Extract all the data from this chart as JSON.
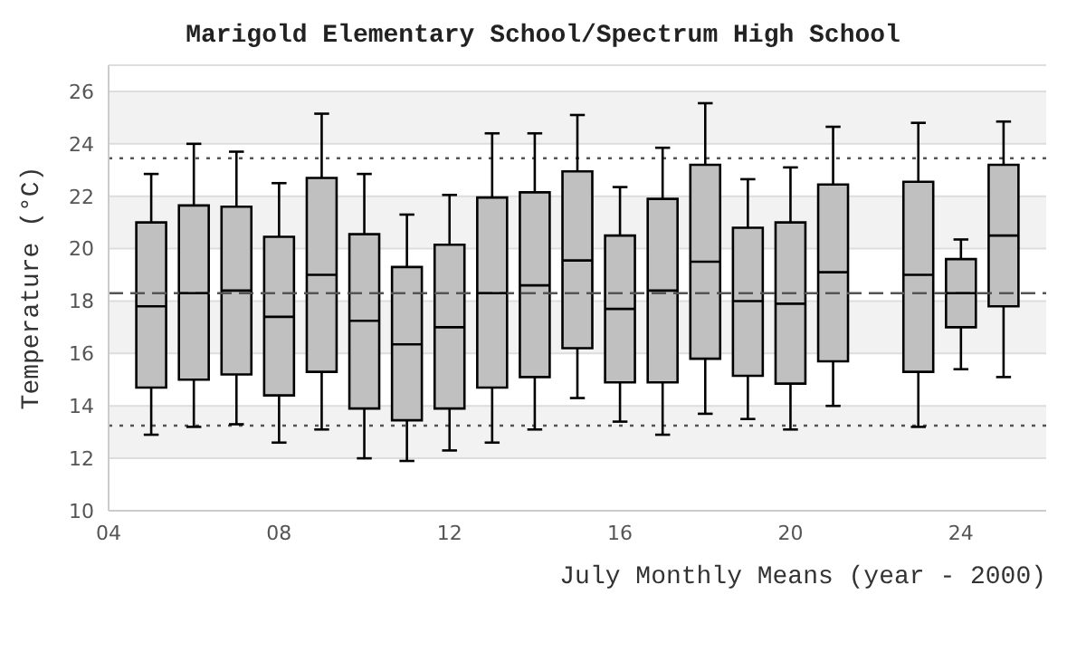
{
  "chart_data": {
    "type": "box",
    "title": "Marigold Elementary School/Spectrum High School",
    "xlabel": "July Monthly Means (year - 2000)",
    "ylabel": "Temperature (°C)",
    "x": [
      5,
      6,
      7,
      8,
      9,
      10,
      11,
      12,
      13,
      14,
      15,
      16,
      17,
      18,
      19,
      20,
      21,
      23,
      24,
      25
    ],
    "boxes": [
      {
        "low": 12.9,
        "q1": 14.7,
        "median": 17.8,
        "q3": 21.0,
        "high": 22.85
      },
      {
        "low": 13.2,
        "q1": 15.0,
        "median": 18.3,
        "q3": 21.65,
        "high": 24.0
      },
      {
        "low": 13.3,
        "q1": 15.2,
        "median": 18.4,
        "q3": 21.6,
        "high": 23.7
      },
      {
        "low": 12.6,
        "q1": 14.4,
        "median": 17.4,
        "q3": 20.45,
        "high": 22.5
      },
      {
        "low": 13.1,
        "q1": 15.3,
        "median": 19.0,
        "q3": 22.7,
        "high": 25.15
      },
      {
        "low": 12.0,
        "q1": 13.9,
        "median": 17.25,
        "q3": 20.55,
        "high": 22.85
      },
      {
        "low": 11.9,
        "q1": 13.45,
        "median": 16.35,
        "q3": 19.3,
        "high": 21.3
      },
      {
        "low": 12.3,
        "q1": 13.9,
        "median": 17.0,
        "q3": 20.15,
        "high": 22.05
      },
      {
        "low": 12.6,
        "q1": 14.7,
        "median": 18.3,
        "q3": 21.95,
        "high": 24.4
      },
      {
        "low": 13.1,
        "q1": 15.1,
        "median": 18.6,
        "q3": 22.15,
        "high": 24.4
      },
      {
        "low": 14.3,
        "q1": 16.2,
        "median": 19.55,
        "q3": 22.95,
        "high": 25.1
      },
      {
        "low": 13.4,
        "q1": 14.9,
        "median": 17.7,
        "q3": 20.5,
        "high": 22.35
      },
      {
        "low": 12.9,
        "q1": 14.9,
        "median": 18.4,
        "q3": 21.9,
        "high": 23.85
      },
      {
        "low": 13.7,
        "q1": 15.8,
        "median": 19.5,
        "q3": 23.2,
        "high": 25.55
      },
      {
        "low": 13.5,
        "q1": 15.15,
        "median": 18.0,
        "q3": 20.8,
        "high": 22.65
      },
      {
        "low": 13.1,
        "q1": 14.85,
        "median": 17.9,
        "q3": 21.0,
        "high": 23.1
      },
      {
        "low": 14.0,
        "q1": 15.7,
        "median": 19.1,
        "q3": 22.45,
        "high": 24.65
      },
      {
        "low": 13.2,
        "q1": 15.3,
        "median": 19.0,
        "q3": 22.55,
        "high": 24.8
      },
      {
        "low": 15.4,
        "q1": 17.0,
        "median": 18.3,
        "q3": 19.6,
        "high": 20.35
      },
      {
        "low": 15.1,
        "q1": 17.8,
        "median": 20.5,
        "q3": 23.2,
        "high": 24.85
      }
    ],
    "color": "#c0c0c0",
    "xlim": [
      4,
      26
    ],
    "xticks": [
      {
        "value": 4,
        "label": "04"
      },
      {
        "value": 8,
        "label": "08"
      },
      12,
      16,
      20,
      24
    ],
    "ylim": [
      10,
      27
    ],
    "yticks": [
      10,
      12,
      14,
      16,
      18,
      20,
      22,
      24,
      26
    ],
    "grid": "y",
    "ref_lines": [
      {
        "axis": "y",
        "value": 23.45,
        "line_style": "dotted"
      },
      {
        "axis": "y",
        "value": 18.3,
        "line_style": "dashed"
      },
      {
        "axis": "y",
        "value": 13.25,
        "line_style": "dotted"
      }
    ]
  }
}
